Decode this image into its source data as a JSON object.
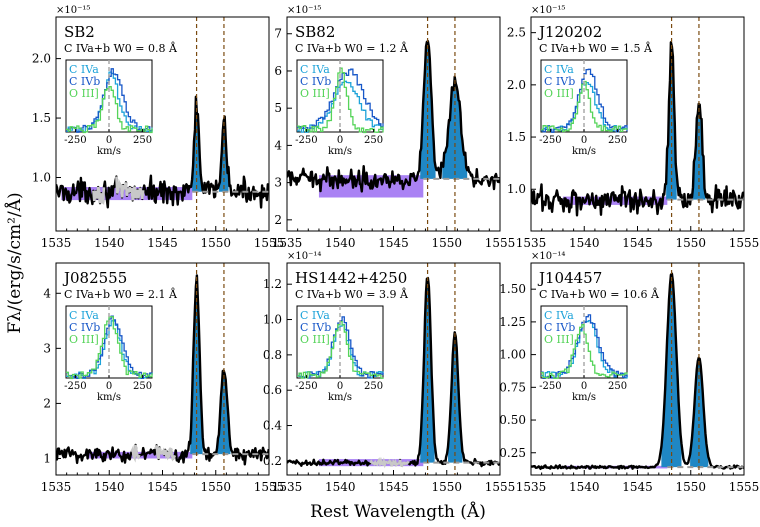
{
  "figure": {
    "xlabel": "Rest Wavelength (Å)",
    "ylabel": "Fλ/(erg/s/cm²/Å)",
    "colors": {
      "spectrum": "#000000",
      "masked": "#c8c8c8",
      "fill": "#1f87c4",
      "continuum_band": "#9b6cf2",
      "continuum_line": "#999999",
      "line_marker": "#7a4a10",
      "inset_a": "#1ea3d9",
      "inset_b": "#1757c8",
      "inset_c": "#56d45a"
    }
  },
  "chart_data": [
    {
      "type": "line",
      "name": "SB2",
      "measurement": "C IVa+b  W0 = 0.8 Å",
      "exponent": "×10⁻¹⁵",
      "xlim": [
        1535,
        1555
      ],
      "ylim": [
        0.55,
        2.35
      ],
      "xticks": [
        1535,
        1540,
        1545,
        1550,
        1555
      ],
      "yticks": [
        1.0,
        1.5,
        2.0
      ],
      "ytick_labels": [
        "1.0",
        "1.5",
        "2.0"
      ],
      "continuum": 0.88,
      "band": [
        0.81,
        0.92
      ],
      "band_range": [
        1535.5,
        1547.8
      ],
      "line_centers": [
        1548.2,
        1550.77
      ],
      "peaks": [
        1.62,
        1.5
      ],
      "widths": [
        0.22,
        0.22
      ],
      "noise": 0.07,
      "masked_ranges": [
        [
          1538.5,
          1539.5
        ],
        [
          1540.6,
          1543.2
        ]
      ],
      "inset": {
        "legend": [
          "C IVa",
          "C IVb",
          "O III]"
        ],
        "xticks": [
          -250,
          0,
          250
        ],
        "xlabel": "km/s",
        "profile_peaks": [
          0.95,
          1.0,
          0.78
        ],
        "profile_widths": [
          55,
          70,
          45
        ],
        "profile_shifts": [
          10,
          25,
          -5
        ]
      }
    },
    {
      "type": "line",
      "name": "SB82",
      "measurement": "C IVa+b  W0 = 1.2 Å",
      "exponent": "×10⁻¹⁵",
      "xlim": [
        1535,
        1555
      ],
      "ylim": [
        1.7,
        7.45
      ],
      "xticks": [
        1535,
        1540,
        1545,
        1550,
        1555
      ],
      "yticks": [
        2,
        3,
        4,
        5,
        6,
        7
      ],
      "ytick_labels": [
        "2",
        "3",
        "4",
        "5",
        "6",
        "7"
      ],
      "continuum": 3.1,
      "band": [
        2.6,
        3.2
      ],
      "band_range": [
        1538.0,
        1547.8
      ],
      "line_centers": [
        1548.2,
        1550.77
      ],
      "peaks": [
        6.8,
        5.6
      ],
      "widths": [
        0.35,
        0.55
      ],
      "noise": 0.18,
      "masked_ranges": [],
      "inset": {
        "legend": [
          "C IVa",
          "C IVb",
          "O III]"
        ],
        "xticks": [
          -250,
          0,
          250
        ],
        "xlabel": "km/s",
        "profile_peaks": [
          0.85,
          1.0,
          1.0
        ],
        "profile_widths": [
          90,
          110,
          45
        ],
        "profile_shifts": [
          40,
          60,
          0
        ]
      }
    },
    {
      "type": "line",
      "name": "J120202",
      "measurement": "C IVa+b  W0 = 1.5 Å",
      "exponent": "×10⁻¹⁵",
      "xlim": [
        1535,
        1555
      ],
      "ylim": [
        0.6,
        2.65
      ],
      "xticks": [
        1535,
        1540,
        1545,
        1550,
        1555
      ],
      "yticks": [
        1.0,
        1.5,
        2.0,
        2.5
      ],
      "ytick_labels": [
        "1.0",
        "1.5",
        "2.0",
        "2.5"
      ],
      "continuum": 0.9,
      "band": [
        0.85,
        0.93
      ],
      "band_range": [
        1538.0,
        1547.8
      ],
      "line_centers": [
        1548.2,
        1550.77
      ],
      "peaks": [
        2.4,
        1.8
      ],
      "widths": [
        0.25,
        0.3
      ],
      "noise": 0.09,
      "masked_ranges": [],
      "inset": {
        "legend": [
          "C IVa",
          "C IVb",
          "O III]"
        ],
        "xticks": [
          -250,
          0,
          250
        ],
        "xlabel": "km/s",
        "profile_peaks": [
          0.85,
          1.0,
          0.8
        ],
        "profile_widths": [
          60,
          70,
          40
        ],
        "profile_shifts": [
          15,
          25,
          -5
        ]
      }
    },
    {
      "type": "line",
      "name": "J082555",
      "measurement": "C IVa+b  W0 = 2.1 Å",
      "exponent": "",
      "xlim": [
        1535,
        1555
      ],
      "ylim": [
        0.7,
        4.55
      ],
      "xticks": [
        1535,
        1540,
        1545,
        1550,
        1555
      ],
      "yticks": [
        1,
        2,
        3,
        4
      ],
      "ytick_labels": [
        "1",
        "2",
        "3",
        "4"
      ],
      "continuum": 1.08,
      "band": [
        1.0,
        1.12
      ],
      "band_range": [
        1538.0,
        1547.8
      ],
      "line_centers": [
        1548.2,
        1550.77
      ],
      "peaks": [
        4.25,
        2.7
      ],
      "widths": [
        0.28,
        0.3
      ],
      "noise": 0.11,
      "masked_ranges": [
        [
          1542.1,
          1542.9
        ],
        [
          1544.3,
          1546.2
        ]
      ],
      "inset": {
        "legend": [
          "C IVa",
          "C IVb",
          "O III]"
        ],
        "xticks": [
          -250,
          0,
          250
        ],
        "xlabel": "km/s",
        "profile_peaks": [
          0.9,
          1.0,
          1.0
        ],
        "profile_widths": [
          60,
          65,
          55
        ],
        "profile_shifts": [
          20,
          25,
          0
        ]
      }
    },
    {
      "type": "line",
      "name": "HS1442+4250",
      "measurement": "C IVa+b  W0 = 3.9 Å",
      "exponent": "×10⁻¹⁴",
      "xlim": [
        1535,
        1555
      ],
      "ylim": [
        0.12,
        1.32
      ],
      "xticks": [
        1535,
        1540,
        1545,
        1550,
        1555
      ],
      "yticks": [
        0.2,
        0.4,
        0.6,
        0.8,
        1.0,
        1.2
      ],
      "ytick_labels": [
        "0.2",
        "0.4",
        "0.6",
        "0.8",
        "1.0",
        "1.2"
      ],
      "continuum": 0.19,
      "band": [
        0.17,
        0.21
      ],
      "band_range": [
        1538.0,
        1547.8
      ],
      "line_centers": [
        1548.2,
        1550.77
      ],
      "peaks": [
        1.25,
        0.92
      ],
      "widths": [
        0.32,
        0.32
      ],
      "noise": 0.012,
      "masked_ranges": [
        [
          1542.8,
          1546.5
        ]
      ],
      "inset": {
        "legend": [
          "C IVa",
          "C IVb",
          "O III]"
        ],
        "xticks": [
          -250,
          0,
          250
        ],
        "xlabel": "km/s",
        "profile_peaks": [
          0.9,
          1.0,
          0.95
        ],
        "profile_widths": [
          55,
          60,
          50
        ],
        "profile_shifts": [
          0,
          5,
          -5
        ]
      }
    },
    {
      "type": "line",
      "name": "J104457",
      "measurement": "C IVa+b  W0 = 10.6 Å",
      "exponent": "×10⁻¹⁴",
      "xlim": [
        1535,
        1555
      ],
      "ylim": [
        0.08,
        1.7
      ],
      "xticks": [
        1535,
        1540,
        1545,
        1550,
        1555
      ],
      "yticks": [
        0.25,
        0.5,
        0.75,
        1.0,
        1.25,
        1.5
      ],
      "ytick_labels": [
        "0.25",
        "0.50",
        "0.75",
        "1.00",
        "1.25",
        "1.50"
      ],
      "continuum": 0.14,
      "band": [
        0.13,
        0.15
      ],
      "band_range": [
        1538.0,
        1547.8
      ],
      "line_centers": [
        1548.2,
        1550.77
      ],
      "peaks": [
        1.62,
        0.98
      ],
      "widths": [
        0.45,
        0.4
      ],
      "noise": 0.008,
      "masked_ranges": [],
      "inset": {
        "legend": [
          "C IVa",
          "C IVb",
          "O III]"
        ],
        "xticks": [
          -250,
          0,
          250
        ],
        "xlabel": "km/s",
        "profile_peaks": [
          0.95,
          1.0,
          0.85
        ],
        "profile_widths": [
          70,
          75,
          50
        ],
        "profile_shifts": [
          20,
          25,
          -25
        ]
      }
    }
  ]
}
